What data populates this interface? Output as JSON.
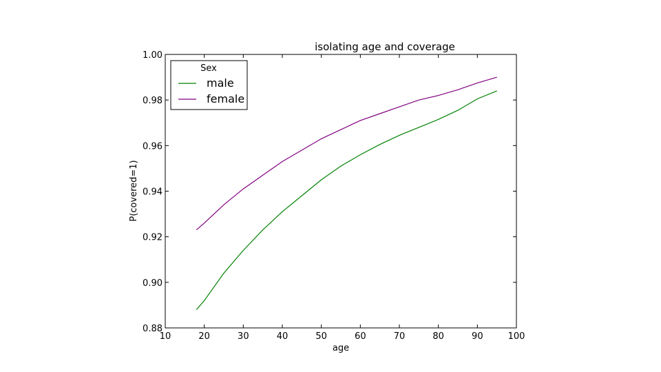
{
  "chart_data": {
    "type": "line",
    "title": "isolating age and coverage",
    "xlabel": "age",
    "ylabel": "P(covered=1)",
    "xlim": [
      10,
      100
    ],
    "ylim": [
      0.88,
      1.0
    ],
    "x_ticks": [
      "10",
      "20",
      "30",
      "40",
      "50",
      "60",
      "70",
      "80",
      "90",
      "100"
    ],
    "y_ticks": [
      "0.88",
      "0.90",
      "0.92",
      "0.94",
      "0.96",
      "0.98",
      "1.00"
    ],
    "grid": false,
    "legend": {
      "title": "Sex",
      "position": "top-left"
    },
    "x": [
      18,
      20,
      25,
      30,
      35,
      40,
      45,
      50,
      55,
      60,
      65,
      70,
      75,
      80,
      85,
      90,
      95
    ],
    "series": [
      {
        "name": "male",
        "color": "#008000",
        "values": [
          0.888,
          0.892,
          0.904,
          0.914,
          0.923,
          0.931,
          0.938,
          0.945,
          0.951,
          0.956,
          0.9605,
          0.9645,
          0.968,
          0.9715,
          0.9755,
          0.9805,
          0.984
        ]
      },
      {
        "name": "female",
        "color": "#800080",
        "values": [
          0.923,
          0.926,
          0.934,
          0.941,
          0.947,
          0.953,
          0.958,
          0.963,
          0.967,
          0.971,
          0.974,
          0.977,
          0.98,
          0.982,
          0.9845,
          0.9875,
          0.99
        ]
      }
    ]
  }
}
